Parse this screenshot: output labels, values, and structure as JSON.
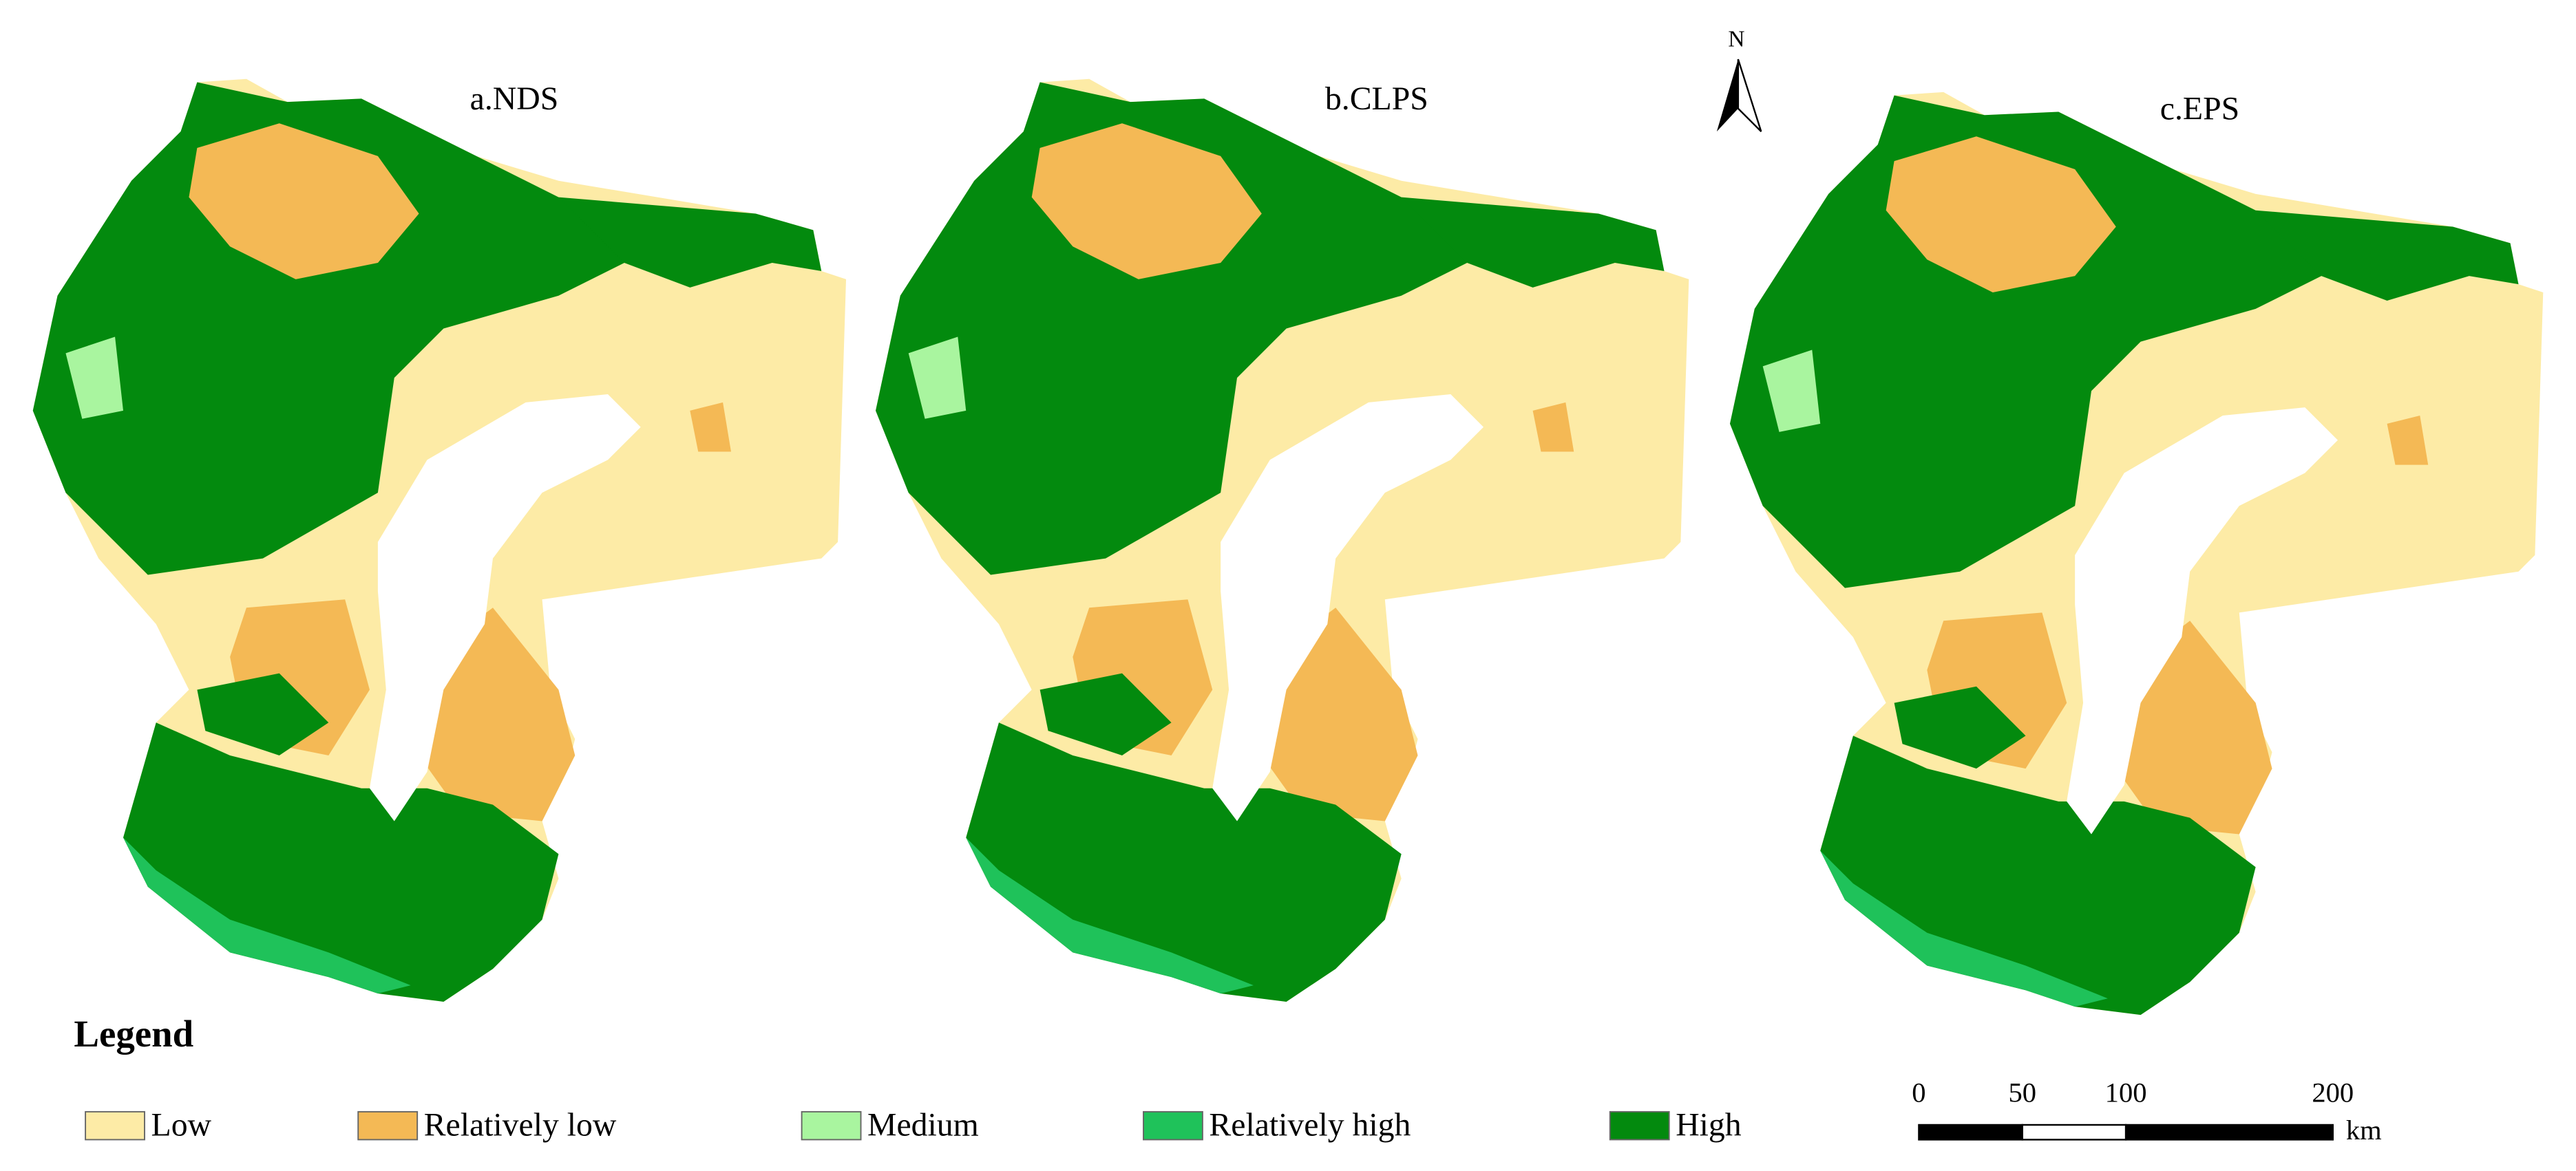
{
  "panels": [
    {
      "title": "a.NDS"
    },
    {
      "title": "b.CLPS"
    },
    {
      "title": "c.EPS"
    }
  ],
  "north_arrow": {
    "label": "N"
  },
  "legend": {
    "title": "Legend",
    "items": [
      {
        "label": "Low",
        "color": "#fdeba6"
      },
      {
        "label": "Relatively low",
        "color": "#f4b955"
      },
      {
        "label": "Medium",
        "color": "#a9f59f"
      },
      {
        "label": "Relatively high",
        "color": "#1fc25a"
      },
      {
        "label": "High",
        "color": "#038a0e"
      }
    ]
  },
  "scale_bar": {
    "ticks": [
      0,
      50,
      100,
      200
    ],
    "unit": "km"
  }
}
